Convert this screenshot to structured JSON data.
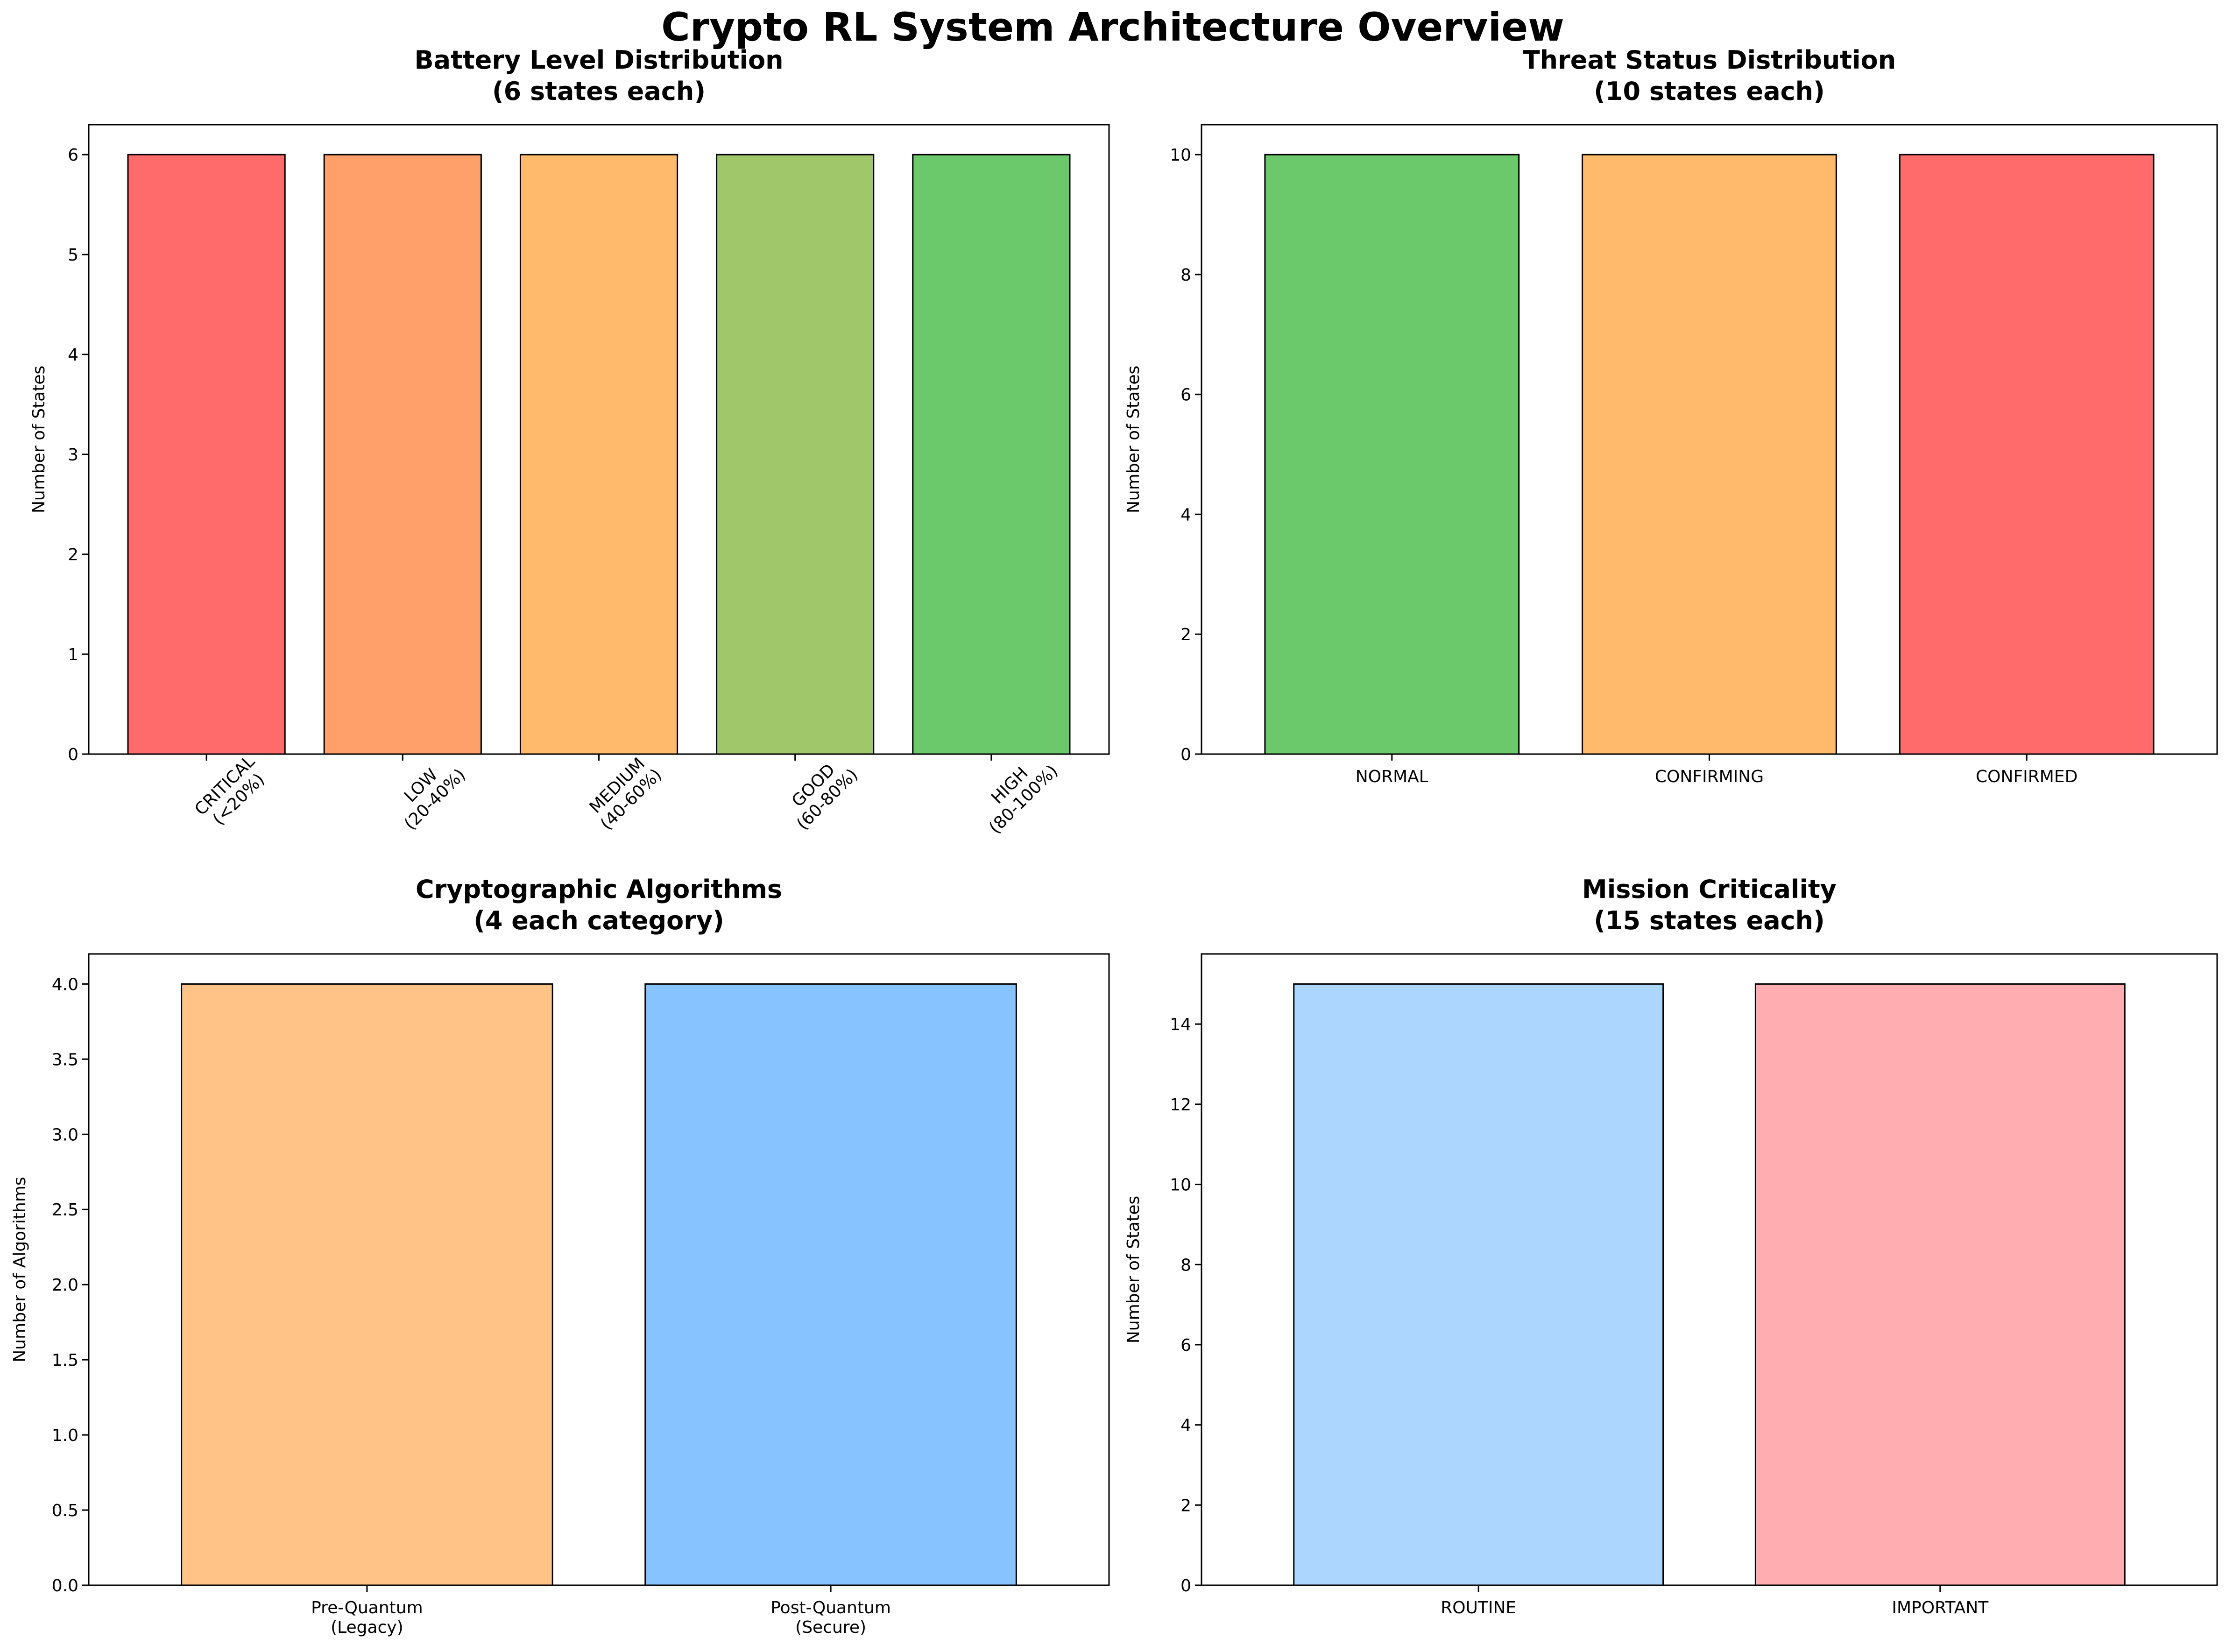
{
  "figure": {
    "title": "Crypto RL System Architecture Overview"
  },
  "chart_data": [
    {
      "type": "bar",
      "title": [
        "Battery Level Distribution",
        "(6 states each)"
      ],
      "ylabel": "Number of States",
      "xlabel": "",
      "categories": [
        [
          "CRITICAL",
          "(<20%)"
        ],
        [
          "LOW",
          "(20-40%)"
        ],
        [
          "MEDIUM",
          "(40-60%)"
        ],
        [
          "GOOD",
          "(60-80%)"
        ],
        [
          "HIGH",
          "(80-100%)"
        ]
      ],
      "values": [
        6,
        6,
        6,
        6,
        6
      ],
      "colors": [
        "#ff6b6b",
        "#ffa06b",
        "#ffbb6b",
        "#a0c86b",
        "#6bc86b"
      ],
      "ylim": [
        0,
        6.3
      ],
      "yticks": [
        0,
        1,
        2,
        3,
        4,
        5,
        6
      ],
      "xtick_rotation": 45,
      "grid": false
    },
    {
      "type": "bar",
      "title": [
        "Threat Status Distribution",
        "(10 states each)"
      ],
      "ylabel": "Number of States",
      "xlabel": "",
      "categories": [
        [
          "NORMAL"
        ],
        [
          "CONFIRMING"
        ],
        [
          "CONFIRMED"
        ]
      ],
      "values": [
        10,
        10,
        10
      ],
      "colors": [
        "#6bc86b",
        "#ffbb6b",
        "#ff6b6b"
      ],
      "ylim": [
        0,
        10.5
      ],
      "yticks": [
        0,
        2,
        4,
        6,
        8,
        10
      ],
      "grid": false
    },
    {
      "type": "bar",
      "title": [
        "Cryptographic Algorithms",
        "(4 each category)"
      ],
      "ylabel": "Number of Algorithms",
      "xlabel": "",
      "categories": [
        [
          "Pre-Quantum",
          "(Legacy)"
        ],
        [
          "Post-Quantum",
          "(Secure)"
        ]
      ],
      "values": [
        4,
        4
      ],
      "colors": [
        "#ffc387",
        "#87c3ff"
      ],
      "ylim": [
        0,
        4.2
      ],
      "yticks": [
        0.0,
        0.5,
        1.0,
        1.5,
        2.0,
        2.5,
        3.0,
        3.5,
        4.0
      ],
      "ytick_decimals": 1,
      "grid": false
    },
    {
      "type": "bar",
      "title": [
        "Mission Criticality",
        "(15 states each)"
      ],
      "ylabel": "Number of States",
      "xlabel": "",
      "categories": [
        [
          "ROUTINE"
        ],
        [
          "IMPORTANT"
        ]
      ],
      "values": [
        15,
        15
      ],
      "colors": [
        "#add6ff",
        "#ffadb1"
      ],
      "ylim": [
        0,
        15.75
      ],
      "yticks": [
        0,
        2,
        4,
        6,
        8,
        10,
        12,
        14
      ],
      "grid": false
    }
  ]
}
